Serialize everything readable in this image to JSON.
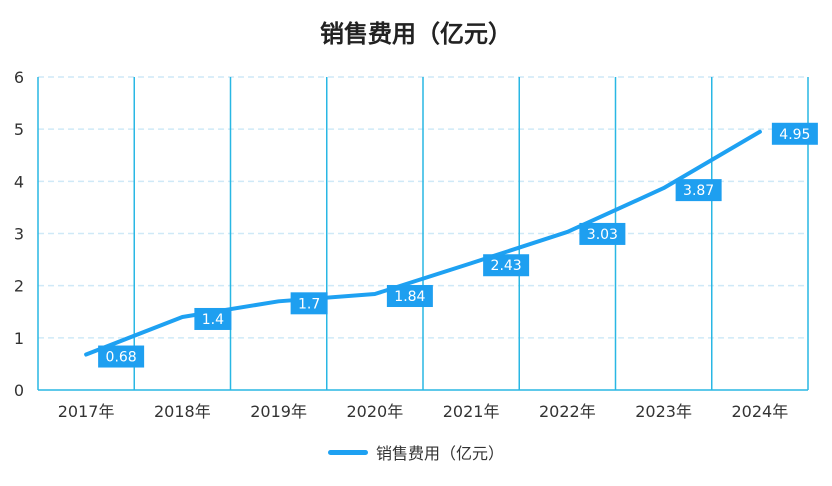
{
  "chart_data": {
    "type": "line",
    "title": "销售费用（亿元）",
    "categories": [
      "2017年",
      "2018年",
      "2019年",
      "2020年",
      "2021年",
      "2022年",
      "2023年",
      "2024年"
    ],
    "series": [
      {
        "name": "销售费用（亿元）",
        "values": [
          0.68,
          1.4,
          1.7,
          1.84,
          2.43,
          3.03,
          3.87,
          4.95
        ],
        "labels": [
          "0.68",
          "1.4",
          "1.7",
          "1.84",
          "2.43",
          "3.03",
          "3.87",
          "4.95"
        ]
      }
    ],
    "y_ticks": [
      "0",
      "1",
      "2",
      "3",
      "4",
      "5",
      "6"
    ],
    "ylim": [
      0,
      6
    ],
    "grid": true,
    "legend": "bottom-center"
  },
  "colors": {
    "line": "#1ea1f2",
    "category_divider": "#29b7e4",
    "gridline": "#cfe9f7",
    "axis": "#29b7e4",
    "label_bg": "#1e9ff0",
    "label_text": "#ffffff",
    "tick_text": "#333333"
  }
}
